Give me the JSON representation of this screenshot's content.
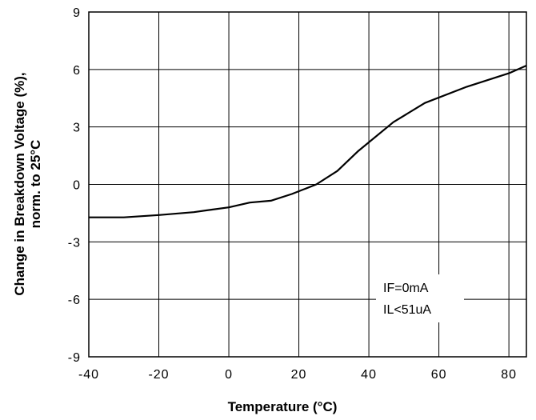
{
  "chart_data": {
    "type": "line",
    "title": "",
    "xlabel": "Temperature (°C)",
    "ylabel_line1": "Change in Breakdown Voltage (%),",
    "ylabel_line2": "norm. to 25°C",
    "xlim": [
      -40,
      85
    ],
    "ylim": [
      -9,
      9
    ],
    "grid": true,
    "x_ticks": [
      -40,
      -20,
      0,
      20,
      40,
      60,
      80
    ],
    "x_tick_labels": [
      "-40",
      "-20",
      "0",
      "20",
      "40",
      "60",
      "80"
    ],
    "y_ticks": [
      9,
      6,
      3,
      0,
      -3,
      -6,
      -9
    ],
    "y_tick_labels": [
      "9",
      "6",
      "3",
      "0",
      "-3",
      "-6",
      "-9"
    ],
    "annotations": [
      "IF=0mA",
      "IL<51uA"
    ],
    "series": [
      {
        "color": "#000000",
        "x": [
          -40,
          -30,
          -20,
          -10,
          -5,
          0,
          6,
          12,
          18,
          25,
          31,
          37,
          47,
          56,
          68,
          80,
          85
        ],
        "y": [
          -1.72,
          -1.72,
          -1.6,
          -1.45,
          -1.32,
          -1.2,
          -0.95,
          -0.85,
          -0.5,
          0.0,
          0.7,
          1.75,
          3.25,
          4.25,
          5.1,
          5.8,
          6.2
        ]
      }
    ]
  }
}
